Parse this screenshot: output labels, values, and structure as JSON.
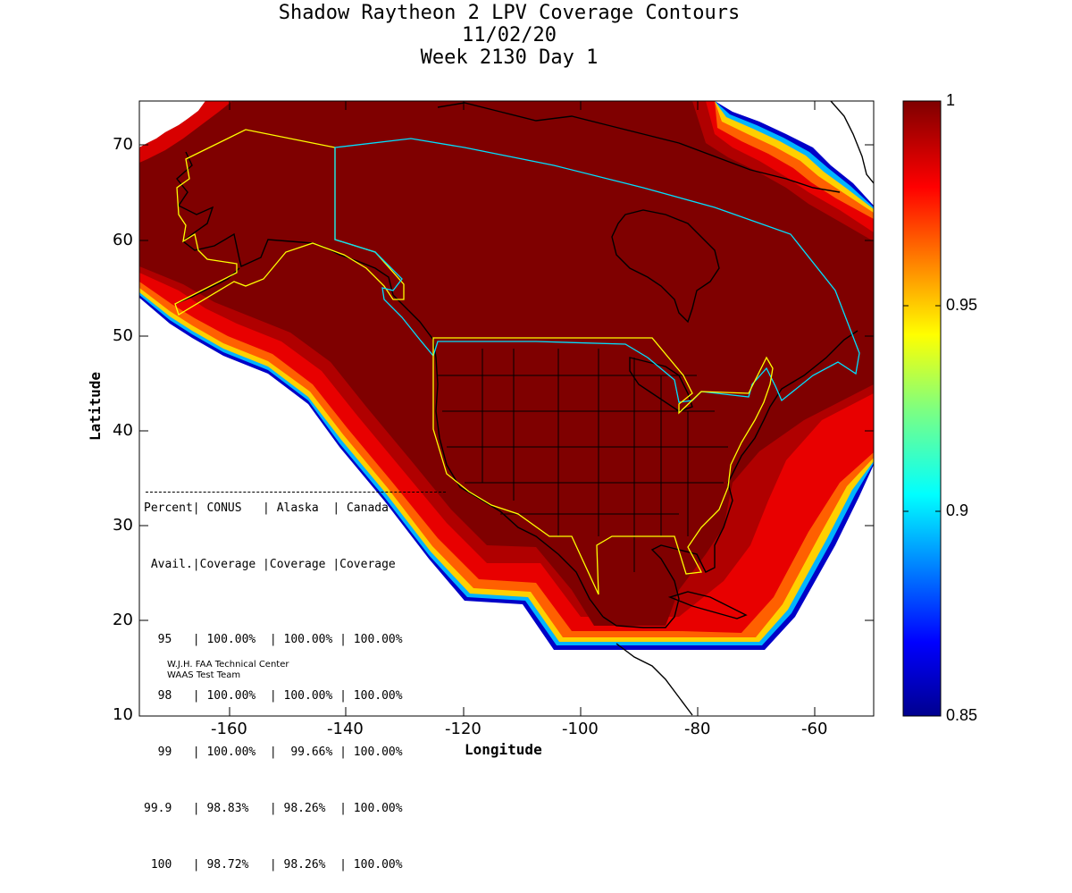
{
  "title": {
    "line1": "Shadow Raytheon 2 LPV Coverage Contours",
    "line2": "11/02/20",
    "line3": "Week 2130 Day 1"
  },
  "map": {
    "xlabel": "Longitude",
    "ylabel": "Latitude",
    "x_ticks": [
      "-160",
      "-140",
      "-120",
      "-100",
      "-80",
      "-60"
    ],
    "y_ticks": [
      "70",
      "60",
      "50",
      "40",
      "30",
      "20",
      "10"
    ],
    "xlim": [
      -175,
      -50
    ],
    "ylim": [
      10,
      75
    ]
  },
  "colorbar": {
    "ticks": [
      "1",
      "0.95",
      "0.9",
      "0.85"
    ],
    "range": [
      0.85,
      1.0
    ],
    "colormap": "jet"
  },
  "stats_table": {
    "header1": "Percent| CONUS   | Alaska  | Canada",
    "header2": " Avail.|Coverage |Coverage |Coverage",
    "rows": [
      "  95   | 100.00%  | 100.00% | 100.00%",
      "  98   | 100.00%  | 100.00% | 100.00%",
      "  99   | 100.00%  |  99.66% | 100.00%",
      "99.9   | 98.83%   | 98.26%  | 100.00%",
      " 100   | 98.72%   | 98.26%  | 100.00%"
    ]
  },
  "credits": {
    "line1": "W.J.H. FAA Technical Center",
    "line2": "WAAS Test Team"
  },
  "colors": {
    "full_coverage": "#7f0000",
    "high": "#a50000",
    "boundary_yellow": "#ffff00",
    "boundary_cyan": "#00c0ff"
  }
}
